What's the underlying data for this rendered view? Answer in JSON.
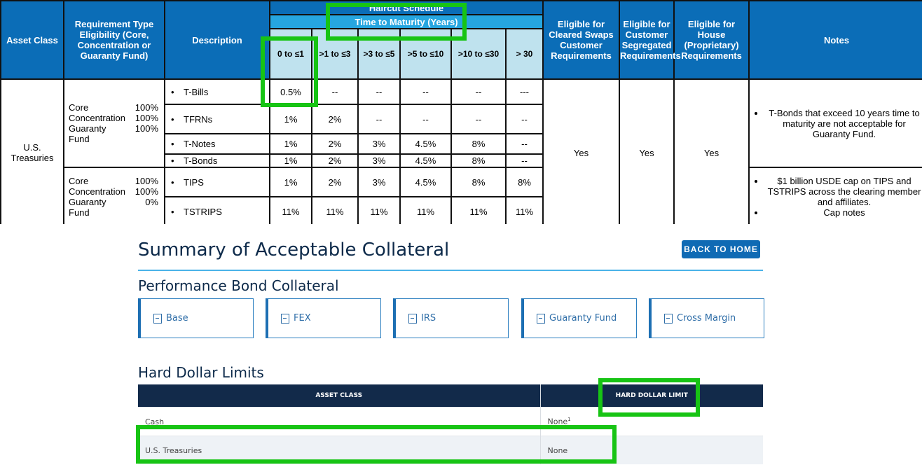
{
  "haircut_table": {
    "headers": {
      "asset_class": "Asset Class",
      "requirement_type": "Requirement Type Eligibility (Core, Concentration or Guaranty Fund)",
      "description": "Description",
      "haircut_schedule": "Haircut Schedule",
      "time_to_maturity": "Time to Maturity (Years)",
      "maturity_buckets": [
        "0 to ≤1",
        ">1 to ≤3",
        ">3 to ≤5",
        ">5 to ≤10",
        ">10 to ≤30",
        "> 30"
      ],
      "eligible_cleared_swaps": "Eligible for Cleared Swaps Customer Requirements",
      "eligible_customer_segregated": "Eligible for Customer Segregated Requirements",
      "eligible_house": "Eligible for House (Proprietary) Requirements",
      "notes": "Notes"
    },
    "asset_class": "U.S. Treasuries",
    "group1_requirements": [
      {
        "label": "Core",
        "value": "100%"
      },
      {
        "label": "Concentration",
        "value": "100%"
      },
      {
        "label": "Guaranty Fund",
        "value": "100%"
      }
    ],
    "group2_requirements": [
      {
        "label": "Core",
        "value": "100%"
      },
      {
        "label": "Concentration",
        "value": "100%"
      },
      {
        "label": "Guaranty Fund",
        "value": "0%"
      }
    ],
    "rows": [
      {
        "description": "T-Bills",
        "haircuts": [
          "0.5%",
          "--",
          "--",
          "--",
          "--",
          "---"
        ]
      },
      {
        "description": "TFRNs",
        "haircuts": [
          "1%",
          "2%",
          "--",
          "--",
          "--",
          "--"
        ]
      },
      {
        "description": "T-Notes",
        "haircuts": [
          "1%",
          "2%",
          "3%",
          "4.5%",
          "8%",
          "--"
        ]
      },
      {
        "description": "T-Bonds",
        "haircuts": [
          "1%",
          "2%",
          "3%",
          "4.5%",
          "8%",
          "--"
        ]
      },
      {
        "description": "TIPS",
        "haircuts": [
          "1%",
          "2%",
          "3%",
          "4.5%",
          "8%",
          "8%"
        ]
      },
      {
        "description": "TSTRIPS",
        "haircuts": [
          "11%",
          "11%",
          "11%",
          "11%",
          "11%",
          "11%"
        ]
      }
    ],
    "eligible_cleared_swaps": "Yes",
    "eligible_customer_segregated": "Yes",
    "eligible_house": "Yes",
    "notes_group1": [
      "T-Bonds that exceed 10 years time to maturity are not acceptable for Guaranty Fund."
    ],
    "notes_group2": [
      "$1 billion USDE cap on TIPS and TSTRIPS across the clearing member and affiliates.",
      "Cap notes"
    ]
  },
  "summary": {
    "title": "Summary of Acceptable Collateral",
    "back_button": "BACK TO HOME",
    "performance_bond_heading": "Performance Bond Collateral",
    "cards": [
      "Base",
      "FEX",
      "IRS",
      "Guaranty Fund",
      "Cross Margin"
    ],
    "hard_dollar_heading": "Hard Dollar Limits",
    "hd_headers": [
      "ASSET CLASS",
      "HARD DOLLAR LIMIT"
    ],
    "hd_rows": [
      {
        "asset": "Cash",
        "limit": "None",
        "footnote": "1"
      },
      {
        "asset": "U.S. Treasuries",
        "limit": "None",
        "footnote": ""
      }
    ]
  },
  "colors": {
    "header_blue": "#0b6db7",
    "band_light_blue": "#26a6e0",
    "bucket_bg": "#bfe2ee",
    "highlight_green": "#17c414",
    "navy": "#122a4a"
  }
}
